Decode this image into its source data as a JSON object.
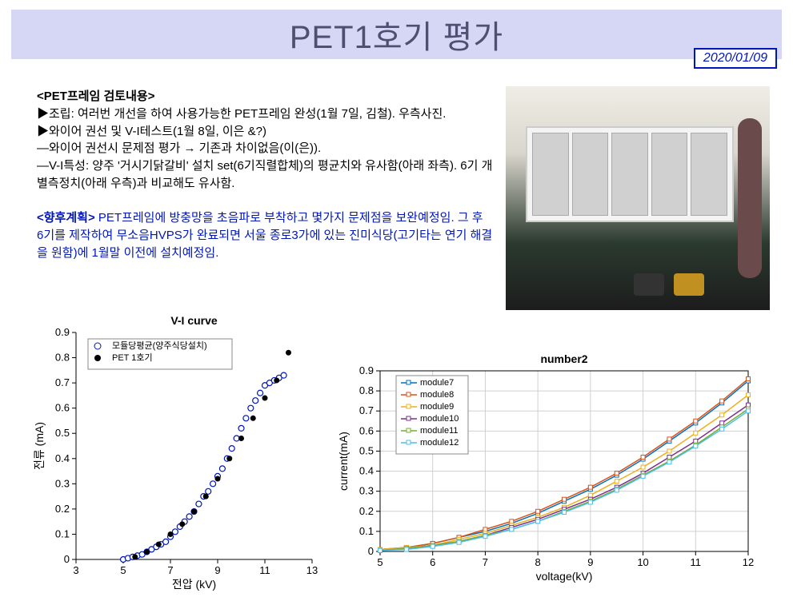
{
  "title": "PET1호기 평가",
  "date": "2020/01/09",
  "section_heading": "<PET프레임 검토내용>",
  "bullet1_label": "▶조립:",
  "bullet1_text": " 여러번 개선을 하여 사용가능한 PET프레임 완성(1월 7일, 김철). 우측사진.",
  "bullet2_label": "▶와이어 권선 및 V-I테스트(1월 8일, 이은 &?)",
  "bullet2_sub1": "   —와이어 권선시 문제점 평가  → 기존과 차이없음(이(은)).",
  "bullet2_sub2": "   —V-I특성: 양주 '거시기닭갈비' 설치 set(6기직렬합체)의 평균치와 유사함(아래 좌측). 6기 개별측정치(아래 우측)과 비교해도 유사함.",
  "plan_label": "<향후계획>",
  "plan_text": "   PET프레임에 방충망을 초음파로 부착하고 몇가지 문제점을 보완예정임. 그 후 6기를 제작하여 무소음HVPS가 완료되면 서울 종로3가에 있는 진미식당(고기타는 연기 해결을 원함)에 1월말 이전에 설치예정임.",
  "chart1": {
    "type": "scatter",
    "title": "V-I curve",
    "xlabel": "전압 (kV)",
    "ylabel": "전류 (mA)",
    "xlim": [
      3,
      13
    ],
    "xtick_step": 2,
    "ylim": [
      0,
      0.9
    ],
    "ytick_step": 0.1,
    "background": "#ffffff",
    "series": [
      {
        "name": "모듈당평균(양주식당설치)",
        "marker": "open-circle",
        "color": "#0016b8",
        "x": [
          5.0,
          5.2,
          5.4,
          5.6,
          5.8,
          6.0,
          6.2,
          6.4,
          6.6,
          6.8,
          7.0,
          7.2,
          7.4,
          7.6,
          7.8,
          8.0,
          8.2,
          8.4,
          8.6,
          8.8,
          9.0,
          9.2,
          9.4,
          9.6,
          9.8,
          10.0,
          10.2,
          10.4,
          10.6,
          10.8,
          11.0,
          11.2,
          11.4,
          11.6,
          11.8
        ],
        "y": [
          0.0,
          0.005,
          0.01,
          0.015,
          0.02,
          0.03,
          0.04,
          0.05,
          0.06,
          0.07,
          0.09,
          0.11,
          0.13,
          0.15,
          0.17,
          0.19,
          0.22,
          0.25,
          0.27,
          0.3,
          0.33,
          0.36,
          0.4,
          0.44,
          0.48,
          0.52,
          0.56,
          0.6,
          0.63,
          0.66,
          0.69,
          0.7,
          0.71,
          0.72,
          0.73
        ]
      },
      {
        "name": "PET 1호기",
        "marker": "filled-circle",
        "color": "#000000",
        "x": [
          5.5,
          6.0,
          6.5,
          7.0,
          7.5,
          8.0,
          8.5,
          9.0,
          9.5,
          10.0,
          10.5,
          11.0,
          11.5,
          12.0
        ],
        "y": [
          0.01,
          0.03,
          0.06,
          0.1,
          0.14,
          0.19,
          0.25,
          0.32,
          0.4,
          0.48,
          0.56,
          0.64,
          0.71,
          0.82
        ]
      }
    ]
  },
  "chart2": {
    "type": "line",
    "title": "number2",
    "xlabel": "voltage(kV)",
    "ylabel": "current(mA)",
    "xlim": [
      5,
      12
    ],
    "xtick_step": 1,
    "ylim": [
      0,
      0.9
    ],
    "ytick_step": 0.1,
    "background": "#ffffff",
    "grid_color": "#d9d9d9",
    "series": [
      {
        "name": "module7",
        "color": "#0072bd",
        "x": [
          5,
          5.5,
          6,
          6.5,
          7,
          7.5,
          8,
          8.5,
          9,
          9.5,
          10,
          10.5,
          11,
          11.5,
          12
        ],
        "y": [
          0.01,
          0.02,
          0.04,
          0.07,
          0.1,
          0.14,
          0.19,
          0.25,
          0.31,
          0.38,
          0.46,
          0.55,
          0.64,
          0.74,
          0.85
        ]
      },
      {
        "name": "module8",
        "color": "#d95319",
        "x": [
          5,
          5.5,
          6,
          6.5,
          7,
          7.5,
          8,
          8.5,
          9,
          9.5,
          10,
          10.5,
          11,
          11.5,
          12
        ],
        "y": [
          0.01,
          0.02,
          0.04,
          0.07,
          0.11,
          0.15,
          0.2,
          0.26,
          0.32,
          0.39,
          0.47,
          0.56,
          0.65,
          0.75,
          0.86
        ]
      },
      {
        "name": "module9",
        "color": "#edb120",
        "x": [
          5,
          5.5,
          6,
          6.5,
          7,
          7.5,
          8,
          8.5,
          9,
          9.5,
          10,
          10.5,
          11,
          11.5,
          12
        ],
        "y": [
          0.01,
          0.02,
          0.03,
          0.06,
          0.09,
          0.13,
          0.17,
          0.22,
          0.28,
          0.35,
          0.42,
          0.5,
          0.59,
          0.68,
          0.78
        ]
      },
      {
        "name": "module10",
        "color": "#7e2f8e",
        "x": [
          5,
          5.5,
          6,
          6.5,
          7,
          7.5,
          8,
          8.5,
          9,
          9.5,
          10,
          10.5,
          11,
          11.5,
          12
        ],
        "y": [
          0.005,
          0.015,
          0.03,
          0.05,
          0.08,
          0.12,
          0.16,
          0.21,
          0.26,
          0.32,
          0.39,
          0.47,
          0.55,
          0.64,
          0.73
        ]
      },
      {
        "name": "module11",
        "color": "#77ac30",
        "x": [
          5,
          5.5,
          6,
          6.5,
          7,
          7.5,
          8,
          8.5,
          9,
          9.5,
          10,
          10.5,
          11,
          11.5,
          12
        ],
        "y": [
          0.005,
          0.015,
          0.03,
          0.05,
          0.08,
          0.11,
          0.15,
          0.2,
          0.25,
          0.31,
          0.38,
          0.45,
          0.53,
          0.62,
          0.71
        ]
      },
      {
        "name": "module12",
        "color": "#4dbeee",
        "x": [
          5,
          5.5,
          6,
          6.5,
          7,
          7.5,
          8,
          8.5,
          9,
          9.5,
          10,
          10.5,
          11,
          11.5,
          12
        ],
        "y": [
          0.005,
          0.01,
          0.025,
          0.045,
          0.075,
          0.11,
          0.15,
          0.195,
          0.245,
          0.305,
          0.375,
          0.445,
          0.525,
          0.61,
          0.7
        ]
      }
    ]
  }
}
